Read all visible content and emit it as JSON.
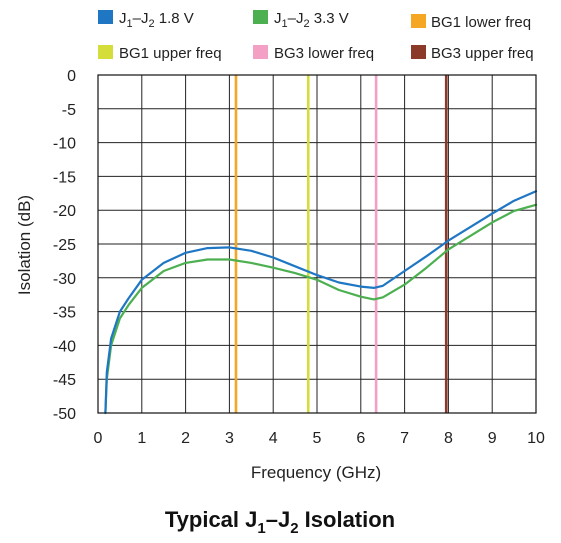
{
  "chart_data": {
    "type": "line",
    "title": "Typical J1–J2 Isolation",
    "xlabel": "Frequency (GHz)",
    "ylabel": "Isolation (dB)",
    "xlim": [
      0,
      10
    ],
    "ylim": [
      -50,
      0
    ],
    "xticks": [
      0,
      1,
      2,
      3,
      4,
      5,
      6,
      7,
      8,
      9,
      10
    ],
    "yticks": [
      0,
      -5,
      -10,
      -15,
      -20,
      -25,
      -30,
      -35,
      -40,
      -45,
      -50
    ],
    "grid": true,
    "legend_position": "top",
    "series": [
      {
        "name": "J1–J2 1.8 V",
        "color": "#1f77c4",
        "x": [
          0.17,
          0.2,
          0.3,
          0.5,
          0.7,
          1.0,
          1.5,
          2.0,
          2.5,
          3.0,
          3.5,
          4.0,
          4.5,
          5.0,
          5.5,
          6.0,
          6.3,
          6.5,
          7.0,
          7.5,
          8.0,
          8.5,
          9.0,
          9.5,
          10.0
        ],
        "values": [
          -50,
          -44,
          -39,
          -35,
          -33,
          -30.3,
          -27.8,
          -26.3,
          -25.6,
          -25.5,
          -26,
          -27,
          -28.3,
          -29.6,
          -30.7,
          -31.3,
          -31.5,
          -31.2,
          -29,
          -26.8,
          -24.5,
          -22.5,
          -20.5,
          -18.6,
          -17.2
        ]
      },
      {
        "name": "J1–J2 3.3 V",
        "color": "#4caf50",
        "x": [
          0.17,
          0.2,
          0.3,
          0.5,
          0.7,
          1.0,
          1.5,
          2.0,
          2.5,
          3.0,
          3.5,
          4.0,
          4.5,
          5.0,
          5.5,
          6.0,
          6.3,
          6.5,
          7.0,
          7.5,
          8.0,
          8.5,
          9.0,
          9.5,
          10.0
        ],
        "values": [
          -50,
          -45,
          -40,
          -36,
          -34,
          -31.5,
          -29,
          -27.8,
          -27.3,
          -27.3,
          -27.8,
          -28.5,
          -29.3,
          -30.3,
          -31.8,
          -32.8,
          -33.2,
          -32.9,
          -31,
          -28.5,
          -25.8,
          -23.8,
          -21.8,
          -20.1,
          -19.2
        ]
      }
    ],
    "markers": [
      {
        "name": "BG1 lower freq",
        "x": 3.15,
        "color": "#f5a623"
      },
      {
        "name": "BG1 upper freq",
        "x": 4.8,
        "color": "#d4dd3a"
      },
      {
        "name": "BG3 lower freq",
        "x": 6.35,
        "color": "#f4a0c4"
      },
      {
        "name": "BG3 upper freq",
        "x": 7.95,
        "color": "#8b3a2a"
      }
    ]
  }
}
